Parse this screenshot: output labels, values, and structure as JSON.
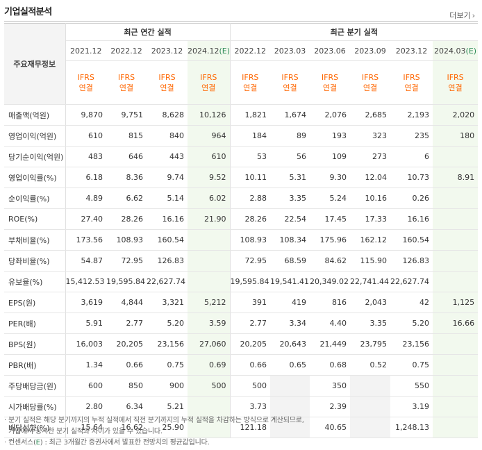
{
  "header": {
    "title": "기업실적분석",
    "more_label": "더보기",
    "more_icon": "chevron-right-icon"
  },
  "table": {
    "stub_label": "주요재무정보",
    "groups": {
      "annual": "최근 연간 실적",
      "quarter": "최근 분기 실적"
    },
    "periods": [
      "2021.12",
      "2022.12",
      "2023.12",
      "2024.12(E)",
      "2022.12",
      "2023.03",
      "2023.06",
      "2023.09",
      "2023.12",
      "2024.03(E)"
    ],
    "accounting": {
      "line1": "IFRS",
      "line2": "연결"
    },
    "rows": [
      {
        "label": "매출액(억원)",
        "values": [
          "9,870",
          "9,751",
          "8,628",
          "10,126",
          "1,821",
          "1,674",
          "2,076",
          "2,685",
          "2,193",
          "2,020"
        ]
      },
      {
        "label": "영업이익(억원)",
        "values": [
          "610",
          "815",
          "840",
          "964",
          "184",
          "89",
          "193",
          "323",
          "235",
          "180"
        ]
      },
      {
        "label": "당기순이익(억원)",
        "values": [
          "483",
          "646",
          "443",
          "610",
          "53",
          "56",
          "109",
          "273",
          "6",
          ""
        ]
      },
      {
        "label": "영업이익률(%)",
        "values": [
          "6.18",
          "8.36",
          "9.74",
          "9.52",
          "10.11",
          "5.31",
          "9.30",
          "12.04",
          "10.73",
          "8.91"
        ]
      },
      {
        "label": "순이익률(%)",
        "values": [
          "4.89",
          "6.62",
          "5.14",
          "6.02",
          "2.88",
          "3.35",
          "5.24",
          "10.16",
          "0.26",
          ""
        ]
      },
      {
        "label": "ROE(%)",
        "values": [
          "27.40",
          "28.26",
          "16.16",
          "21.90",
          "28.26",
          "22.54",
          "17.45",
          "17.33",
          "16.16",
          ""
        ]
      },
      {
        "label": "부채비율(%)",
        "values": [
          "173.56",
          "108.93",
          "160.54",
          "",
          "108.93",
          "108.34",
          "175.96",
          "162.12",
          "160.54",
          ""
        ]
      },
      {
        "label": "당좌비율(%)",
        "values": [
          "54.87",
          "72.95",
          "126.83",
          "",
          "72.95",
          "68.59",
          "84.62",
          "115.90",
          "126.83",
          ""
        ]
      },
      {
        "label": "유보율(%)",
        "values": [
          "15,412.53",
          "19,595.84",
          "22,627.74",
          "",
          "19,595.84",
          "19,541.41",
          "20,349.02",
          "22,741.44",
          "22,627.74",
          ""
        ]
      },
      {
        "label": "EPS(원)",
        "values": [
          "3,619",
          "4,844",
          "3,321",
          "5,212",
          "391",
          "419",
          "816",
          "2,043",
          "42",
          "1,125"
        ]
      },
      {
        "label": "PER(배)",
        "values": [
          "5.91",
          "2.77",
          "5.20",
          "3.59",
          "2.77",
          "3.34",
          "4.40",
          "3.35",
          "5.20",
          "16.66"
        ]
      },
      {
        "label": "BPS(원)",
        "values": [
          "16,003",
          "20,205",
          "23,156",
          "27,060",
          "20,205",
          "20,643",
          "21,449",
          "23,795",
          "23,156",
          ""
        ]
      },
      {
        "label": "PBR(배)",
        "values": [
          "1.34",
          "0.66",
          "0.75",
          "0.69",
          "0.66",
          "0.65",
          "0.68",
          "0.52",
          "0.75",
          ""
        ]
      },
      {
        "label": "주당배당금(원)",
        "values": [
          "600",
          "850",
          "900",
          "500",
          "500",
          "",
          "350",
          "",
          "550",
          ""
        ]
      },
      {
        "label": "시가배당률(%)",
        "values": [
          "2.80",
          "6.34",
          "5.21",
          "",
          "3.73",
          "",
          "2.39",
          "",
          "3.19",
          ""
        ]
      },
      {
        "label": "배당성향(%)",
        "values": [
          "15.64",
          "16.62",
          "25.90",
          "",
          "121.18",
          "",
          "40.65",
          "",
          "1,248.13",
          ""
        ]
      }
    ]
  },
  "notes": [
    "· 분기 실적은 해당 분기까지의 누적 실적에서 직전 분기까지의 누적 실적을 차감하는 방식으로 계산되므로,",
    "  기업에서 공시한 분기 실적과 차이가 있을 수 있습니다.",
    "· 컨센서스(E) : 최근 3개월간 증권사에서 발표한 전망치의 평균값입니다."
  ]
}
